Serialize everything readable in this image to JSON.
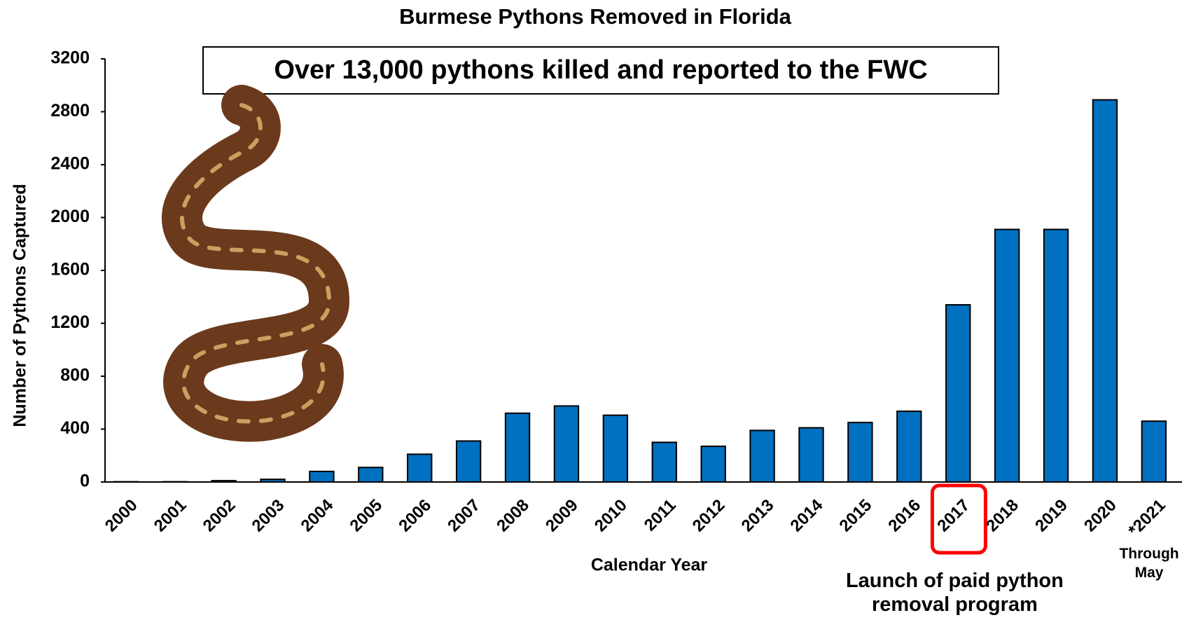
{
  "chart_data": {
    "type": "bar",
    "title": "Burmese Pythons Removed in Florida",
    "annotation_box": "Over 13,000 pythons killed and reported to the FWC",
    "x_label": "Calendar Year",
    "y_label": "Number of  Pythons Captured",
    "categories": [
      "2000",
      "2001",
      "2002",
      "2003",
      "2004",
      "2005",
      "2006",
      "2007",
      "2008",
      "2009",
      "2010",
      "2011",
      "2012",
      "2013",
      "2014",
      "2015",
      "2016",
      "2017",
      "2018",
      "2019",
      "2020",
      "*2021"
    ],
    "values": [
      2,
      2,
      10,
      20,
      80,
      110,
      210,
      310,
      520,
      575,
      505,
      300,
      270,
      390,
      410,
      450,
      535,
      1340,
      1910,
      1910,
      2890,
      460
    ],
    "color": "#0070c0",
    "ylim": [
      0,
      3200
    ],
    "yticks": [
      0,
      400,
      800,
      1200,
      1600,
      2000,
      2400,
      2800,
      3200
    ],
    "grid": false,
    "last_category_note": [
      "Through",
      "May"
    ],
    "highlight_category": "2017",
    "highlight_color": "#ff0000",
    "highlight_note": [
      "Launch of paid python",
      "removal program"
    ]
  }
}
